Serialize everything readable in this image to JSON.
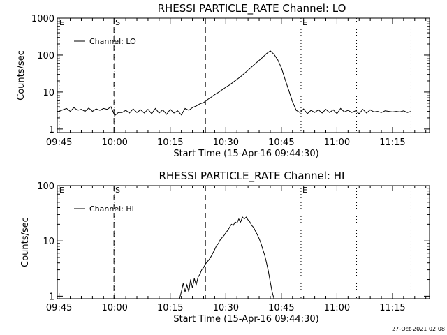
{
  "chart_data": [
    {
      "type": "line",
      "title": "RHESSI PARTICLE_RATE Channel: LO",
      "xlabel": "Start Time (15-Apr-16 09:44:30)",
      "ylabel": "Counts/sec",
      "yscale": "log",
      "ylim": [
        0.8,
        1000
      ],
      "yticks": [
        1,
        10,
        100,
        1000
      ],
      "ytick_labels": [
        "1",
        "10",
        "100",
        "1000"
      ],
      "xlim_min": [
        -0.5,
        100
      ],
      "xticks_min": [
        0,
        15,
        30,
        45,
        60,
        75,
        90
      ],
      "xtick_labels": [
        "09:45",
        "10:00",
        "10:15",
        "10:30",
        "10:45",
        "11:00",
        "11:15"
      ],
      "legend": "Channel: LO",
      "markers": [
        {
          "label": "E",
          "x_min": -0.3,
          "style": "dotted"
        },
        {
          "label": "S",
          "x_min": 14.8,
          "style": "dashed"
        },
        {
          "label": "",
          "x_min": 39.5,
          "style": "dashed"
        },
        {
          "label": "E",
          "x_min": 65.3,
          "style": "dotted"
        }
      ],
      "extra_dotted_min": [
        0,
        15,
        80.3,
        95
      ],
      "series": [
        {
          "name": "Channel: LO",
          "x_min": [
            0,
            1,
            2,
            3,
            4,
            5,
            6,
            7,
            8,
            9,
            10,
            11,
            12,
            13,
            14,
            15,
            16,
            17,
            18,
            19,
            20,
            21,
            22,
            23,
            24,
            25,
            26,
            27,
            28,
            29,
            30,
            31,
            32,
            33,
            34,
            35,
            36,
            37,
            38,
            39,
            40,
            41,
            42,
            43,
            44,
            45,
            46,
            47,
            48,
            49,
            50,
            51,
            52,
            53,
            54,
            55,
            56,
            57,
            58,
            59,
            60,
            61,
            62,
            63,
            64,
            65,
            66,
            67,
            68,
            69,
            70,
            71,
            72,
            73,
            74,
            75,
            76,
            77,
            78,
            79,
            80,
            81,
            82,
            83,
            84,
            85,
            86,
            87,
            88,
            89,
            90,
            91,
            92,
            93,
            94,
            95
          ],
          "values": [
            3,
            3.3,
            3.6,
            3,
            3.8,
            3.2,
            3.4,
            3,
            3.7,
            3,
            3.5,
            3.2,
            3.6,
            3.4,
            4,
            2.3,
            2.8,
            2.8,
            3.2,
            2.7,
            3.5,
            2.8,
            3.3,
            2.7,
            3.4,
            2.6,
            3.6,
            2.7,
            3.3,
            2.5,
            3.4,
            2.7,
            3.1,
            2.4,
            3.6,
            3.2,
            3.8,
            4.2,
            4.8,
            5.2,
            6.2,
            7.2,
            8.5,
            9.8,
            11.5,
            13.5,
            15.5,
            18.5,
            22,
            26,
            32,
            39,
            48,
            59,
            72,
            88,
            110,
            130,
            105,
            75,
            45,
            22,
            11,
            5.5,
            3.2,
            2.8,
            3.5,
            2.6,
            3.2,
            2.8,
            3.3,
            2.7,
            3.4,
            2.8,
            3.3,
            2.6,
            3.6,
            2.9,
            3.2,
            2.8,
            3.1,
            2.6,
            3.4,
            2.7,
            3.3,
            2.9,
            3,
            2.8,
            3.1,
            3,
            2.9,
            3,
            2.9,
            3.1,
            2.8,
            3
          ],
          "x_min_extra": [],
          "note": ""
        }
      ]
    },
    {
      "type": "line",
      "title": "RHESSI PARTICLE_RATE Channel: HI",
      "xlabel": "Start Time (15-Apr-16 09:44:30)",
      "ylabel": "Counts/sec",
      "yscale": "log",
      "ylim": [
        0.9,
        100
      ],
      "yticks": [
        1,
        10,
        100
      ],
      "ytick_labels": [
        "1",
        "10",
        "100"
      ],
      "xlim_min": [
        -0.5,
        100
      ],
      "xticks_min": [
        0,
        15,
        30,
        45,
        60,
        75,
        90
      ],
      "xtick_labels": [
        "09:45",
        "10:00",
        "10:15",
        "10:30",
        "10:45",
        "11:00",
        "11:15"
      ],
      "legend": "Channel: HI",
      "markers": [
        {
          "label": "E",
          "x_min": -0.3,
          "style": "dotted"
        },
        {
          "label": "S",
          "x_min": 14.8,
          "style": "dashed"
        },
        {
          "label": "",
          "x_min": 39.5,
          "style": "dashed"
        },
        {
          "label": "E",
          "x_min": 65.3,
          "style": "dotted"
        }
      ],
      "extra_dotted_min": [
        15,
        80.3,
        95
      ],
      "series": [
        {
          "name": "Channel: HI",
          "x_min": [
            32.5,
            33,
            33.5,
            34,
            34.5,
            35,
            35.5,
            36,
            36.5,
            37,
            37.5,
            38,
            38.5,
            39,
            39.5,
            40,
            40.5,
            41,
            41.5,
            42,
            42.5,
            43,
            43.5,
            44,
            44.5,
            45,
            45.5,
            46,
            46.5,
            47,
            47.5,
            48,
            48.5,
            49,
            49.5,
            50,
            50.5,
            51,
            51.5,
            52,
            52.5,
            53,
            53.5,
            54,
            54.5,
            55,
            55.5,
            56,
            56.5,
            57,
            57.5,
            58,
            58.5,
            59,
            59.5,
            60,
            60.5,
            61,
            61.5,
            62,
            62.5,
            63
          ],
          "values": [
            0.9,
            1.2,
            1.7,
            1.2,
            1.6,
            1.2,
            2.0,
            1.4,
            2.1,
            1.6,
            2.2,
            2.5,
            3.0,
            3.3,
            3.8,
            4.2,
            4.6,
            5.2,
            6.0,
            7.0,
            8.2,
            9.0,
            10.5,
            11.5,
            12.5,
            14.0,
            15.5,
            17.5,
            20.0,
            19.0,
            22.0,
            21.0,
            25.0,
            22.0,
            27.0,
            25.0,
            27.0,
            24.0,
            22.0,
            19.0,
            17.5,
            15.0,
            13.0,
            11.0,
            9.0,
            7.0,
            5.5,
            4.0,
            2.8,
            1.8,
            1.2,
            0.9,
            0.9,
            0.9,
            0.9,
            0.9,
            0.9,
            0.9,
            0.9,
            0.9,
            0.9,
            0.9
          ],
          "note": ""
        }
      ]
    }
  ],
  "stamp": "27-Oct-2021 02:08"
}
